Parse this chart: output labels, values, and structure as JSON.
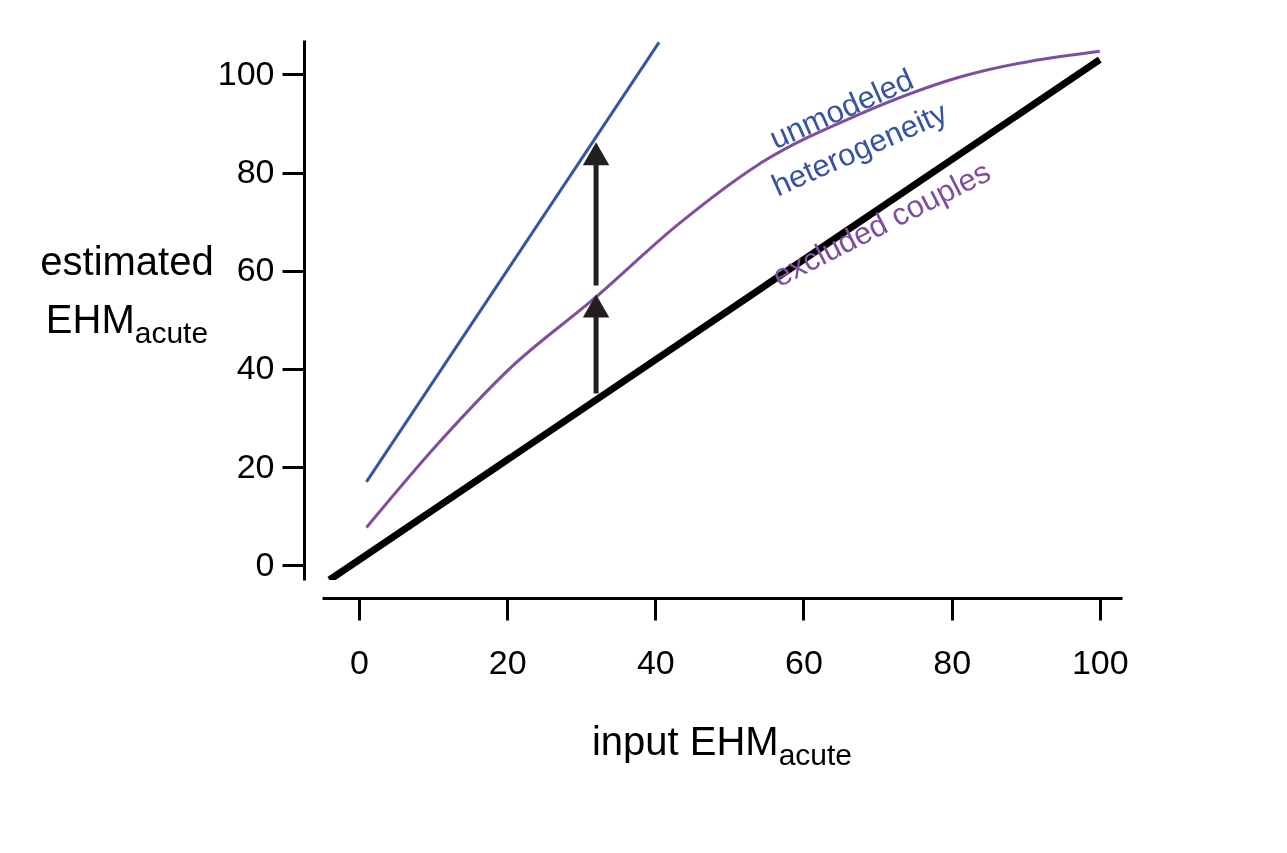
{
  "chart_data": {
    "type": "line",
    "xlabel": "input EHM$_{acute}$",
    "ylabel": "estimated EHM$_{acute}$",
    "xlim": [
      -5,
      103
    ],
    "ylim": [
      -3,
      107
    ],
    "xticks": [
      0,
      20,
      40,
      60,
      80,
      100
    ],
    "yticks": [
      0,
      20,
      40,
      60,
      80,
      100
    ],
    "grid": false,
    "marker": "none",
    "line_style": "solid",
    "series": [
      {
        "color": "#000000",
        "x": [
          -4,
          100
        ],
        "values": [
          -3,
          103
        ]
      },
      {
        "color": "#3953a4",
        "x": [
          1,
          40.5
        ],
        "values": [
          17,
          106.5
        ]
      },
      {
        "color": "#7f4f9f",
        "x": [
          1,
          10.8,
          20.3,
          31.8,
          43.2,
          54,
          67.6,
          81,
          100
        ],
        "values": [
          7.7,
          25,
          40,
          54.4,
          69.6,
          81.7,
          91.9,
          99.4,
          104.7
        ]
      },
      {
        "color": "#231f20",
        "x": [
          32,
          32
        ],
        "values": [
          35,
          52
        ],
        "marker": "triangle"
      },
      {
        "color": "#231f20",
        "x": [
          32,
          32
        ],
        "values": [
          57,
          83
        ],
        "marker": "triangle"
      }
    ],
    "annotations": [
      "unmodeled heterogeneity",
      "excluded couples"
    ]
  }
}
